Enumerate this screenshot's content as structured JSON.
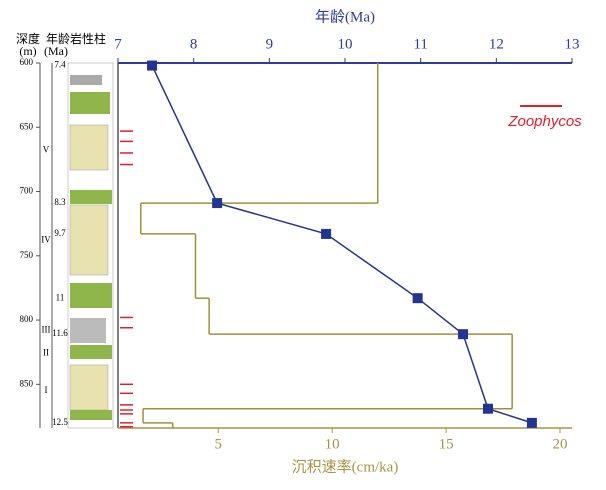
{
  "chart_data": {
    "type": "depth-profile",
    "top_axis": {
      "label": "年龄(Ma)",
      "xlim": [
        7,
        13
      ],
      "xticks": [
        7,
        8,
        9,
        10,
        11,
        12,
        13
      ],
      "color": "#2e3a9c"
    },
    "bottom_axis": {
      "label": "沉积速率(cm/ka)",
      "xlim": [
        0.6,
        20
      ],
      "xticks": [
        5,
        10,
        15,
        20
      ],
      "color": "#a89445"
    },
    "ylim": [
      600,
      884
    ],
    "yticks": [
      600,
      650,
      700,
      750,
      800,
      850
    ],
    "column_headers": [
      "深度",
      "年龄",
      "岩性柱"
    ],
    "column_units": [
      "(m)",
      "(Ma)"
    ],
    "age_series": {
      "x": [
        7.45,
        8.31,
        9.75,
        10.96,
        11.56,
        11.89,
        12.47
      ],
      "y": [
        602,
        709,
        733,
        783,
        811,
        869,
        880
      ],
      "color": "#233592"
    },
    "rate_series": {
      "depth_breaks": [
        600,
        709,
        733,
        783,
        811,
        869,
        880,
        884
      ],
      "values": [
        12.0,
        1.6,
        4.0,
        4.6,
        17.9,
        1.7,
        3.0
      ],
      "color": "#a38f3a"
    },
    "zoophycos": {
      "name": "Zoophycos",
      "color": "#e0202a",
      "depths": [
        653,
        661,
        670,
        679,
        798,
        806,
        850,
        857,
        866,
        870,
        873,
        880,
        883
      ]
    },
    "column_ages": {
      "labels": [
        "7.4",
        "8.3",
        "9.7",
        "11",
        "11.6",
        "12.5"
      ],
      "depths": [
        602,
        709,
        733,
        783,
        811,
        880
      ]
    },
    "units": {
      "labels": [
        "V",
        "IV",
        "III",
        "II",
        "I"
      ],
      "depths": [
        668,
        738,
        808,
        826,
        855
      ]
    }
  }
}
